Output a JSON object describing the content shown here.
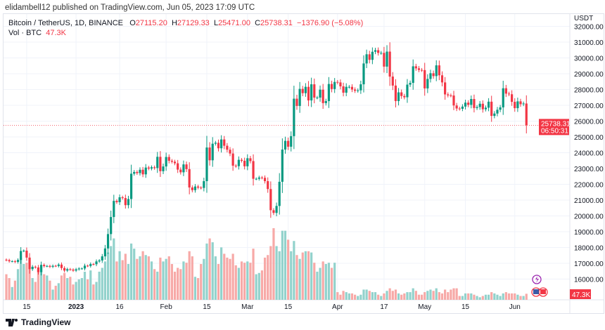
{
  "publisher": "elidambell12 published on TradingView.com, Jun 05, 2023 17:09 UTC",
  "legend": {
    "symbol": "Bitcoin / TetherUS, 1D, BINANCE",
    "o_label": "O",
    "o": "27115.20",
    "h_label": "H",
    "h": "27129.33",
    "l_label": "L",
    "l": "25471.00",
    "c_label": "C",
    "c": "25738.31",
    "change": "−1376.90 (−5.08%)",
    "vol_label": "Vol · BTC",
    "vol": "47.3K"
  },
  "footer": {
    "brand": "TradingView"
  },
  "colors": {
    "up": "#089981",
    "down": "#f23645",
    "vol_up": "#92d2cc",
    "vol_down": "#f7a9a7",
    "grid": "#f0f3fa"
  },
  "chart_data": {
    "type": "candlestick",
    "title": "Bitcoin / TetherUS, 1D, BINANCE",
    "currency": "USDT",
    "ylim": [
      15000,
      32000
    ],
    "yticks": [
      "16000.00",
      "17000.00",
      "18000.00",
      "19000.00",
      "20000.00",
      "21000.00",
      "22000.00",
      "23000.00",
      "24000.00",
      "25000.00",
      "26000.00",
      "27000.00",
      "28000.00",
      "29000.00",
      "30000.00",
      "31000.00",
      "32000.00"
    ],
    "xticks": [
      {
        "label": "15",
        "day": 7
      },
      {
        "label": "2023",
        "day": 24
      },
      {
        "label": "16",
        "day": 39
      },
      {
        "label": "Feb",
        "day": 55
      },
      {
        "label": "15",
        "day": 69
      },
      {
        "label": "Mar",
        "day": 83
      },
      {
        "label": "15",
        "day": 97
      },
      {
        "label": "Apr",
        "day": 114
      },
      {
        "label": "17",
        "day": 130
      },
      {
        "label": "May",
        "day": 144
      },
      {
        "label": "15",
        "day": 158
      },
      {
        "label": "Jun",
        "day": 175
      }
    ],
    "start_date": "2022-12-08",
    "first_open": 17230,
    "close": [
      17200,
      17130,
      17130,
      17090,
      17210,
      17780,
      17800,
      17360,
      16630,
      16780,
      16740,
      16440,
      16900,
      16820,
      16830,
      16780,
      16840,
      16830,
      16920,
      16700,
      16540,
      16630,
      16600,
      16540,
      16620,
      16670,
      16670,
      16850,
      16830,
      16950,
      16940,
      17120,
      17180,
      17440,
      17940,
      18850,
      19930,
      20950,
      20870,
      21180,
      21130,
      20680,
      21070,
      22670,
      22780,
      22710,
      22920,
      22630,
      23060,
      23000,
      23080,
      23030,
      23740,
      22830,
      23130,
      23730,
      23490,
      23430,
      23330,
      22930,
      22760,
      23260,
      22960,
      21800,
      21630,
      21860,
      21790,
      21770,
      22200,
      24330,
      23520,
      24570,
      24630,
      24280,
      24840,
      24440,
      24190,
      23950,
      23180,
      23150,
      23550,
      23490,
      23140,
      23650,
      23470,
      22350,
      22350,
      22430,
      22410,
      22200,
      21700,
      20360,
      20190,
      20630,
      22160,
      24200,
      24750,
      24380,
      25050,
      27420,
      26960,
      28040,
      27770,
      28170,
      27310,
      28330,
      27490,
      27490,
      27990,
      27140,
      27270,
      28350,
      28030,
      28480,
      28450,
      28200,
      27800,
      28170,
      28170,
      28000,
      27920,
      27950,
      28330,
      29650,
      30230,
      29880,
      30390,
      30490,
      30320,
      30320,
      29450,
      30400,
      28820,
      28250,
      27270,
      27820,
      27590,
      27510,
      28310,
      28420,
      29470,
      29340,
      29240,
      29230,
      28070,
      28670,
      29030,
      28850,
      29530,
      28900,
      28450,
      27690,
      27630,
      27620,
      26990,
      26800,
      26780,
      26920,
      27170,
      27030,
      27400,
      26830,
      26890,
      27100,
      26750,
      26850,
      27230,
      26330,
      26480,
      26720,
      26870,
      28080,
      27740,
      27700,
      27220,
      26820,
      27250,
      27070,
      27115,
      25738.31
    ],
    "volume_k": [
      200,
      170,
      100,
      150,
      240,
      330,
      280,
      290,
      330,
      170,
      140,
      240,
      260,
      200,
      190,
      150,
      80,
      110,
      130,
      190,
      210,
      170,
      180,
      120,
      140,
      160,
      170,
      220,
      160,
      230,
      120,
      140,
      220,
      250,
      300,
      370,
      420,
      480,
      300,
      380,
      310,
      360,
      280,
      440,
      400,
      320,
      340,
      380,
      350,
      340,
      300,
      240,
      220,
      330,
      300,
      320,
      340,
      280,
      220,
      250,
      240,
      300,
      290,
      380,
      340,
      180,
      170,
      280,
      320,
      440,
      480,
      450,
      340,
      280,
      410,
      360,
      330,
      320,
      360,
      270,
      250,
      300,
      290,
      300,
      290,
      400,
      200,
      210,
      230,
      330,
      350,
      420,
      560,
      420,
      380,
      540,
      540,
      470,
      380,
      460,
      350,
      320,
      370,
      380,
      380,
      370,
      290,
      220,
      250,
      300,
      280,
      290,
      250,
      290,
      60,
      40,
      70,
      60,
      50,
      50,
      40,
      30,
      40,
      80,
      80,
      70,
      60,
      60,
      40,
      30,
      50,
      70,
      90,
      70,
      80,
      50,
      40,
      50,
      60,
      60,
      90,
      70,
      40,
      40,
      60,
      70,
      80,
      70,
      90,
      60,
      50,
      80,
      60,
      80,
      90,
      90,
      30,
      30,
      50,
      50,
      50,
      40,
      30,
      20,
      30,
      40,
      40,
      60,
      50,
      40,
      30,
      50,
      60,
      50,
      50,
      50,
      40,
      30,
      30,
      47.3
    ],
    "last_price_label": "25738.31",
    "countdown": "06:50:31",
    "last_volume_label": "47.3K"
  }
}
